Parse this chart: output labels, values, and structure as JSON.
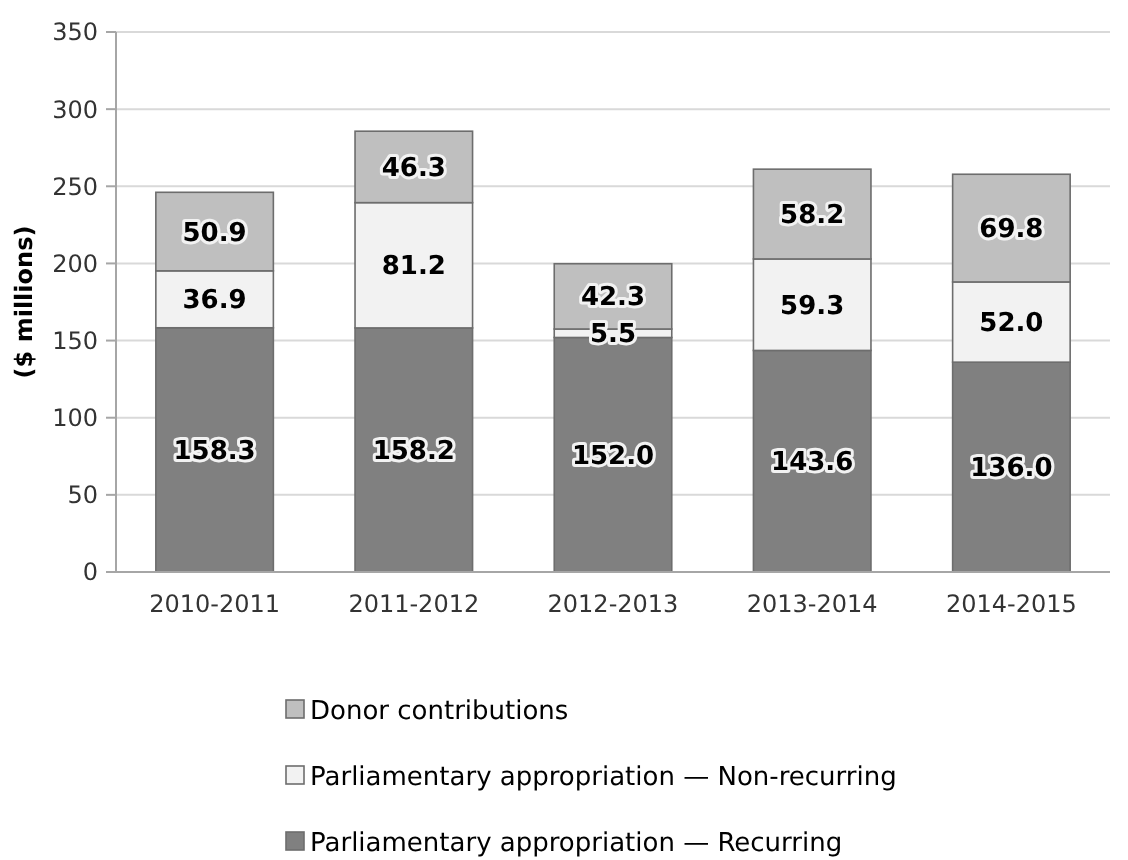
{
  "chart_data": {
    "type": "bar",
    "stacked": true,
    "ylabel": "($ millions)",
    "categories": [
      "2010-2011",
      "2011-2012",
      "2012-2013",
      "2013-2014",
      "2014-2015"
    ],
    "series": [
      {
        "name": "Parliamentary appropriation — Recurring",
        "color": "#808080",
        "values": [
          158.3,
          158.2,
          152.0,
          143.6,
          136.0
        ],
        "value_labels": [
          "158.3",
          "158.2",
          "152.0",
          "143.6",
          "136.0"
        ]
      },
      {
        "name": "Parliamentary appropriation — Non-recurring",
        "color": "#f2f2f2",
        "values": [
          36.9,
          81.2,
          5.5,
          59.3,
          52.0
        ],
        "value_labels": [
          "36.9",
          "81.2",
          "5.5",
          "59.3",
          "52.0"
        ]
      },
      {
        "name": "Donor contributions",
        "color": "#bfbfbf",
        "values": [
          50.9,
          46.3,
          42.3,
          58.2,
          69.8
        ],
        "value_labels": [
          "50.9",
          "46.3",
          "42.3",
          "58.2",
          "69.8"
        ]
      }
    ],
    "ylim": [
      0,
      350
    ],
    "yticks": [
      0,
      50,
      100,
      150,
      200,
      250,
      300,
      350
    ],
    "grid": "y",
    "legend": "bottom"
  }
}
